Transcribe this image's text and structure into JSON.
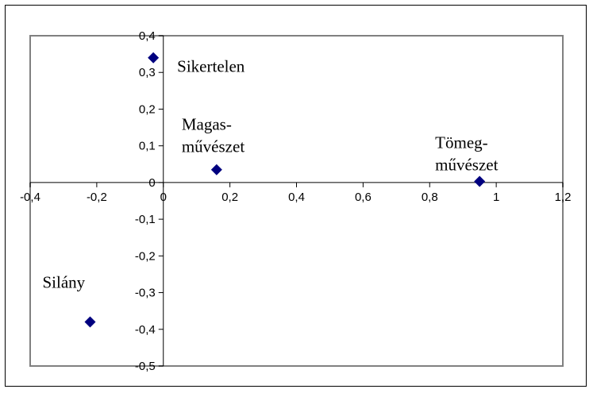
{
  "chart_data": {
    "type": "scatter",
    "title": "",
    "xlabel": "",
    "ylabel": "",
    "xlim": [
      -0.4,
      1.2
    ],
    "ylim": [
      -0.5,
      0.4
    ],
    "x_ticks": [
      -0.4,
      -0.2,
      0,
      0.2,
      0.4,
      0.6,
      0.8,
      1,
      1.2
    ],
    "y_ticks": [
      0.4,
      0.3,
      0.2,
      0.1,
      0,
      -0.1,
      -0.2,
      -0.3,
      -0.4,
      -0.5
    ],
    "x_tick_labels": [
      "-0,4",
      "-0,2",
      "0",
      "0,2",
      "0,4",
      "0,6",
      "0,8",
      "1",
      "1,2"
    ],
    "y_tick_labels": [
      "0,4",
      "0,3",
      "0,2",
      "0,1",
      "0",
      "-0,1",
      "-0,2",
      "-0,3",
      "-0,4",
      "-0,5"
    ],
    "grid": false,
    "legend": "none",
    "marker_color": "#00007f",
    "points": [
      {
        "label_lines": [
          "Sikertelen"
        ],
        "x": -0.03,
        "y": 0.34
      },
      {
        "label_lines": [
          "Magas-",
          "művészet"
        ],
        "x": 0.16,
        "y": 0.035
      },
      {
        "label_lines": [
          "Tömeg-",
          "művészet"
        ],
        "x": 0.95,
        "y": 0.003
      },
      {
        "label_lines": [
          "Silány"
        ],
        "x": -0.22,
        "y": -0.38
      }
    ]
  }
}
